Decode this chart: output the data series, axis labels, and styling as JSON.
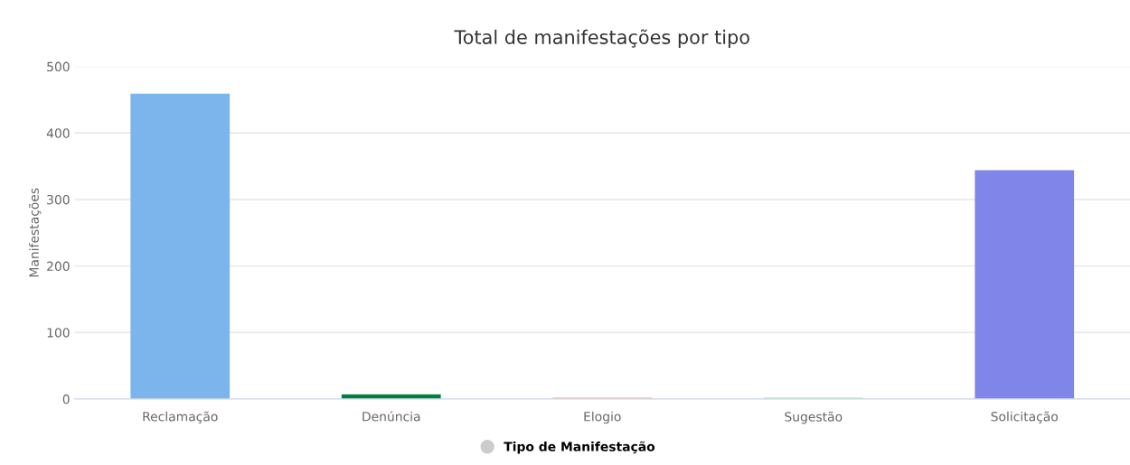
{
  "chart_data": {
    "type": "bar",
    "title": "Total de manifestações por tipo",
    "ylabel": "Manifestações",
    "categories": [
      "Reclamação",
      "Denúncia",
      "Elogio",
      "Sugestão",
      "Solicitação"
    ],
    "series": [
      {
        "name": "Tipo de Manifestação",
        "color": "#cccccc",
        "colors": [
          "#7cb5ec",
          "#007f3f",
          "#f7a35c",
          "#90ed7d",
          "#8085e9"
        ],
        "values": [
          459,
          7,
          2,
          2,
          344
        ]
      }
    ],
    "ylim": [
      0,
      500
    ],
    "yticks": [
      0,
      100,
      200,
      300,
      400,
      500
    ],
    "grid": "y",
    "legend": "bottom"
  }
}
